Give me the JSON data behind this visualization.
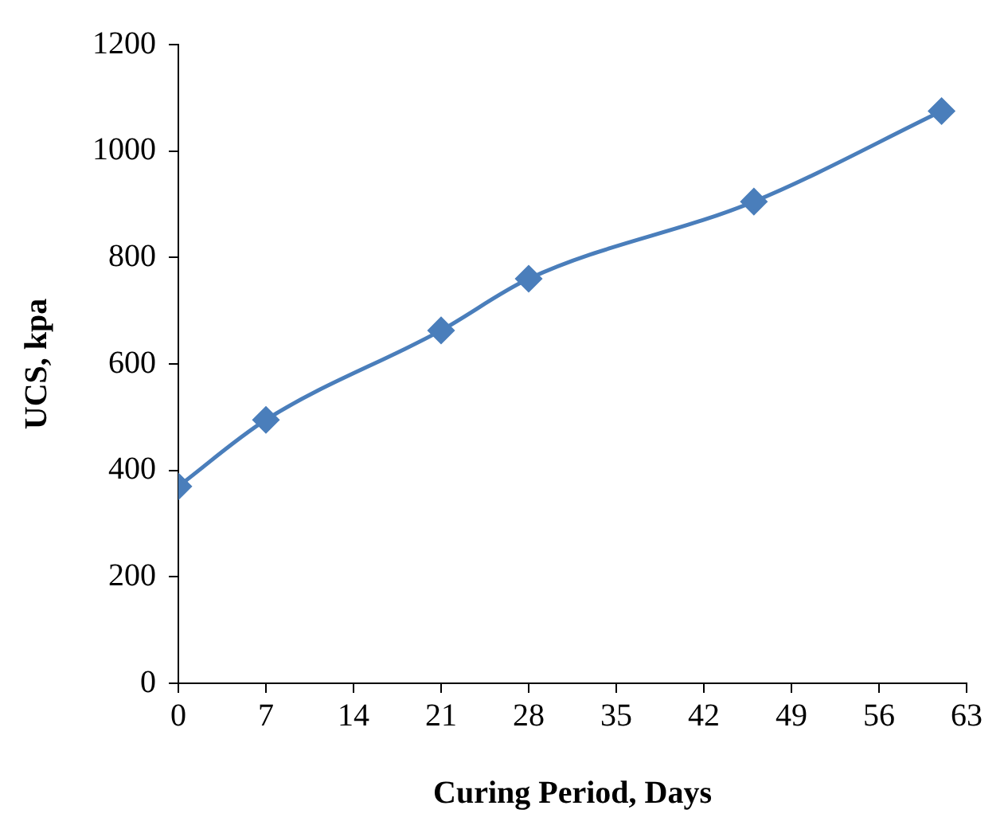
{
  "chart_data": {
    "type": "line",
    "xlabel": "Curing Period, Days",
    "ylabel": "UCS, kpa",
    "x": [
      0,
      7,
      21,
      28,
      46,
      61
    ],
    "series": [
      {
        "color": "#4a7ebb",
        "values": [
          370,
          495,
          663,
          760,
          905,
          1075
        ]
      }
    ],
    "xlim": [
      0,
      63
    ],
    "xticks": [
      0,
      7,
      14,
      21,
      28,
      35,
      42,
      49,
      56,
      63
    ],
    "ylim": [
      0,
      1200
    ],
    "yticks": [
      0,
      200,
      400,
      600,
      800,
      1000,
      1200
    ],
    "grid": false,
    "legend": false,
    "marker": "diamond",
    "line_style": "solid"
  }
}
